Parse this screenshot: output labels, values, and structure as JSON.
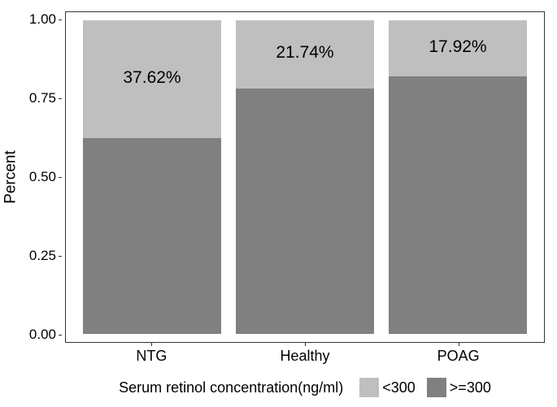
{
  "chart": {
    "type": "stacked_bar_percent",
    "background_color": "#ffffff",
    "panel_border_color": "#333333",
    "y_axis": {
      "title": "Percent",
      "lim": [
        0,
        1
      ],
      "ticks": [
        0.0,
        0.25,
        0.5,
        0.75,
        1.0
      ],
      "tick_labels": [
        "0.00",
        "0.25",
        "0.50",
        "0.75",
        "1.00"
      ],
      "title_fontsize": 19,
      "tick_fontsize": 17
    },
    "x_axis": {
      "categories": [
        "NTG",
        "Healthy",
        "POAG"
      ],
      "tick_fontsize": 18
    },
    "series_colors": {
      "lt300": "#bfbfbf",
      "ge300": "#808080"
    },
    "bar_width_ratio": 0.9,
    "bars": [
      {
        "category": "NTG",
        "lt300": 0.3762,
        "ge300": 0.6238,
        "top_label": "37.62%"
      },
      {
        "category": "Healthy",
        "lt300": 0.2174,
        "ge300": 0.7826,
        "top_label": "21.74%"
      },
      {
        "category": "POAG",
        "lt300": 0.1792,
        "ge300": 0.8208,
        "top_label": "17.92%"
      }
    ],
    "value_label_fontsize": 21,
    "value_label_color": "#000000",
    "legend": {
      "title": "Serum retinol concentration(ng/ml)",
      "items": [
        {
          "key": "lt300",
          "label": "<300"
        },
        {
          "key": "ge300",
          "label": ">=300"
        }
      ],
      "fontsize": 18
    }
  }
}
